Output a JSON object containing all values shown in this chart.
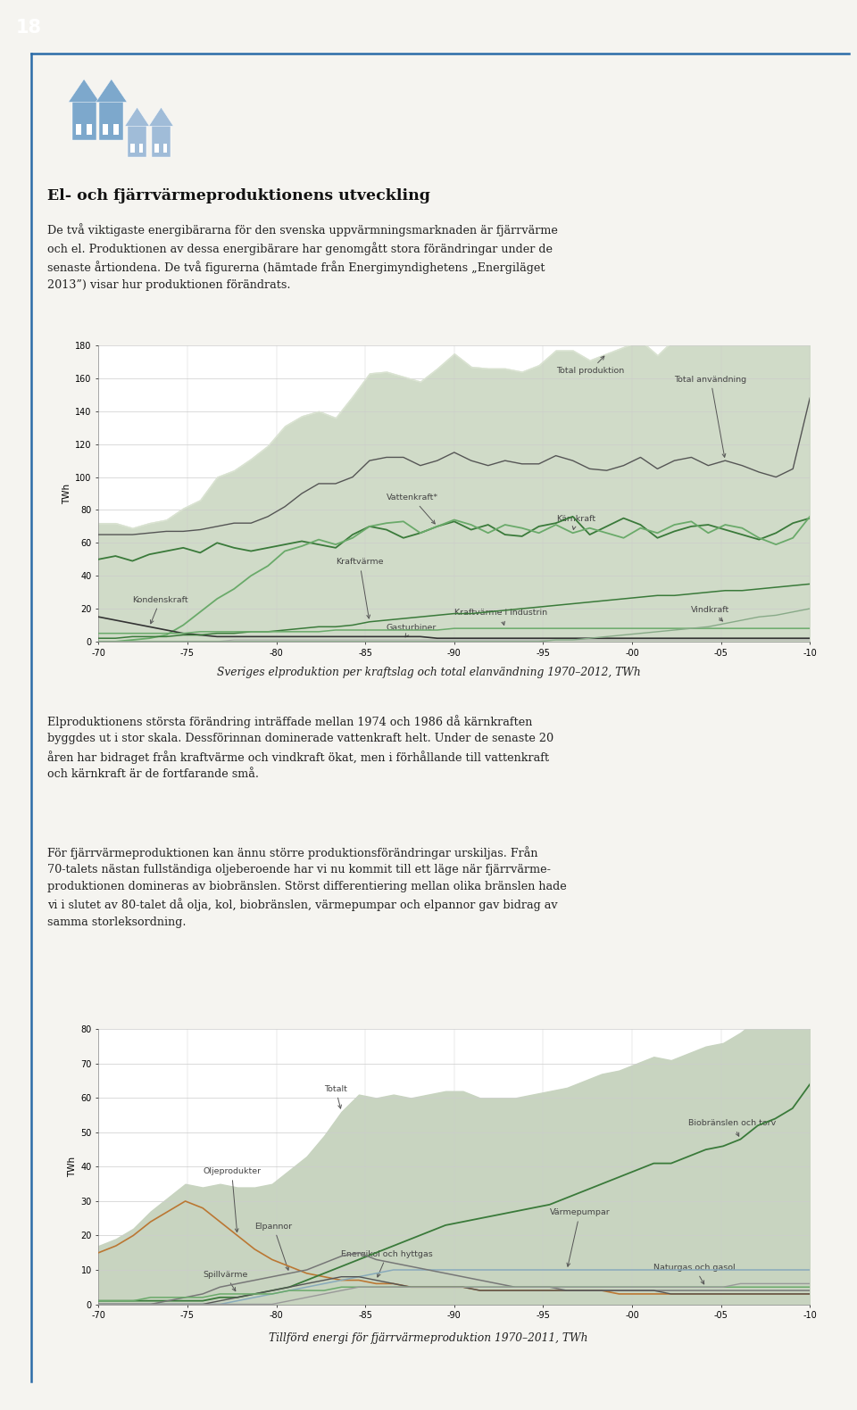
{
  "page_bg": "#f5f4f0",
  "header_bg": "#2b6ca8",
  "header_text": "18",
  "title": "El- och fjärrvärmeproduktionens utveckling",
  "body_text1": "De två viktigaste energibärarna för den svenska uppvärmningsmarknaden är fjärrvärme\noch el. Produktionen av dessa energibärare har genomgått stora förändringar under de\nsenaste årtiondena. De två figurerna (hämtade från Energimyndighetens „Energiläget\n2013”) visar hur produktionen förändrats.",
  "caption1": "Sveriges elproduktion per kraftslag och total elanvändning 1970–2012, TWh",
  "body_text2": "Elproduktionens största förändring inträffade mellan 1974 och 1986 då kärnkraften\nbyggdes ut i stor skala. Dessförinnan dominerade vattenkraft helt. Under de senaste 20\nåren har bidraget från kraftvärme och vindkraft ökat, men i förhållande till vattenkraft\noch kärnkraft är de fortfarande små.",
  "body_text3": "För fjärrvärmeproduktionen kan ännu större produktionsförändringar urskiljas. Från\n70-talets nästan fullständiga oljeberoende har vi nu kommit till ett läge när fjärrvärme-\nproduktionen domineras av biobränslen. Störst differentiering mellan olika bränslen hade\nvi i slutet av 80-talet då olja, kol, biobränslen, värmepumpar och elpannor gav bidrag av\nsamma storleksordning.",
  "caption2": "Tillförd energi för fjärrvärmeproduktion 1970–2011, TWh",
  "years1_labels": [
    "-70",
    "-75",
    "-80",
    "-85",
    "-90",
    "-95",
    "-00",
    "-05",
    "-10"
  ],
  "years2_labels": [
    "-70",
    "-75",
    "-80",
    "-85",
    "-90",
    "-95",
    "-00",
    "-05",
    "-10"
  ],
  "chart1_ylim": [
    0,
    180
  ],
  "chart1_yticks": [
    0,
    20,
    40,
    60,
    80,
    100,
    120,
    140,
    160,
    180
  ],
  "chart2_ylim": [
    0,
    80
  ],
  "chart2_yticks": [
    0,
    10,
    20,
    30,
    40,
    50,
    60,
    70,
    80
  ],
  "fill_color": "#d0dbc8",
  "fill_color2": "#c8d4c0",
  "line_dark_green": "#3a7a3a",
  "line_mid_green": "#6aaa6a",
  "line_kondenskraft": "#333333",
  "line_gray": "#999999",
  "line_orange": "#cc7733",
  "border_color": "#2b6ca8",
  "text_color": "#222222",
  "annotation_color": "#444444"
}
